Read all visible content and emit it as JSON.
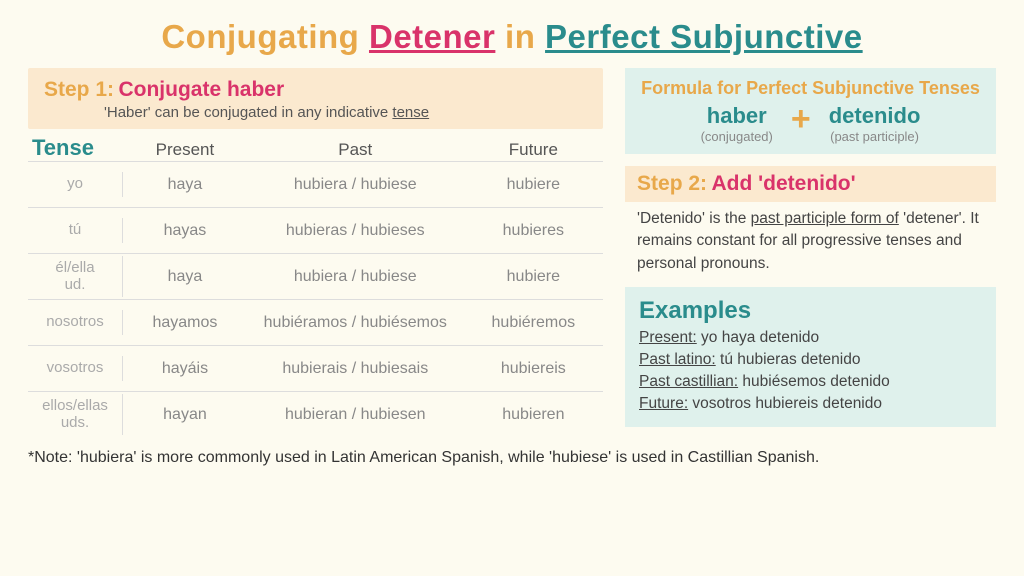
{
  "title": {
    "pre": "Conjugating",
    "verb": "Detener",
    "in": "in",
    "tense": "Perfect Subjunctive"
  },
  "step1": {
    "label": "Step 1:",
    "title": "Conjugate haber",
    "sub_pre": "'Haber' can be conjugated in any indicative ",
    "sub_u": "tense"
  },
  "table": {
    "tense_header": "Tense",
    "cols": {
      "present": "Present",
      "past": "Past",
      "future": "Future"
    },
    "rows": [
      {
        "pronoun": "yo",
        "present": "haya",
        "past": "hubiera / hubiese",
        "future": "hubiere"
      },
      {
        "pronoun": "tú",
        "present": "hayas",
        "past": "hubieras / hubieses",
        "future": "hubieres"
      },
      {
        "pronoun": "él/ella ud.",
        "present": "haya",
        "past": "hubiera / hubiese",
        "future": "hubiere"
      },
      {
        "pronoun": "nosotros",
        "present": "hayamos",
        "past": "hubiéramos / hubiésemos",
        "future": "hubiéremos"
      },
      {
        "pronoun": "vosotros",
        "present": "hayáis",
        "past": "hubierais / hubiesais",
        "future": "hubiereis"
      },
      {
        "pronoun": "ellos/ellas uds.",
        "present": "hayan",
        "past": "hubieran / hubiesen",
        "future": "hubieren"
      }
    ]
  },
  "formula": {
    "head": "Formula for Perfect Subjunctive Tenses",
    "left_top": "haber",
    "left_bot": "(conjugated)",
    "plus": "+",
    "right_top": "detenido",
    "right_bot": "(past participle)"
  },
  "step2": {
    "label": "Step 2:",
    "title": "Add 'detenido'",
    "body_pre": "'Detenido' is the ",
    "body_u": "past participle form of",
    "body_post": " 'detener'.  It remains constant for all progressive tenses and personal pronouns."
  },
  "examples": {
    "head": "Examples",
    "lines": [
      {
        "lab": "Present:",
        "val": " yo haya detenido"
      },
      {
        "lab": "Past latino:",
        "val": " tú hubieras detenido"
      },
      {
        "lab": "Past castillian:",
        "val": " hubiésemos detenido"
      },
      {
        "lab": "Future:",
        "val": " vosotros hubiereis detenido"
      }
    ]
  },
  "note": "*Note: 'hubiera' is more commonly used in Latin American Spanish, while 'hubiese' is used in Castillian Spanish."
}
